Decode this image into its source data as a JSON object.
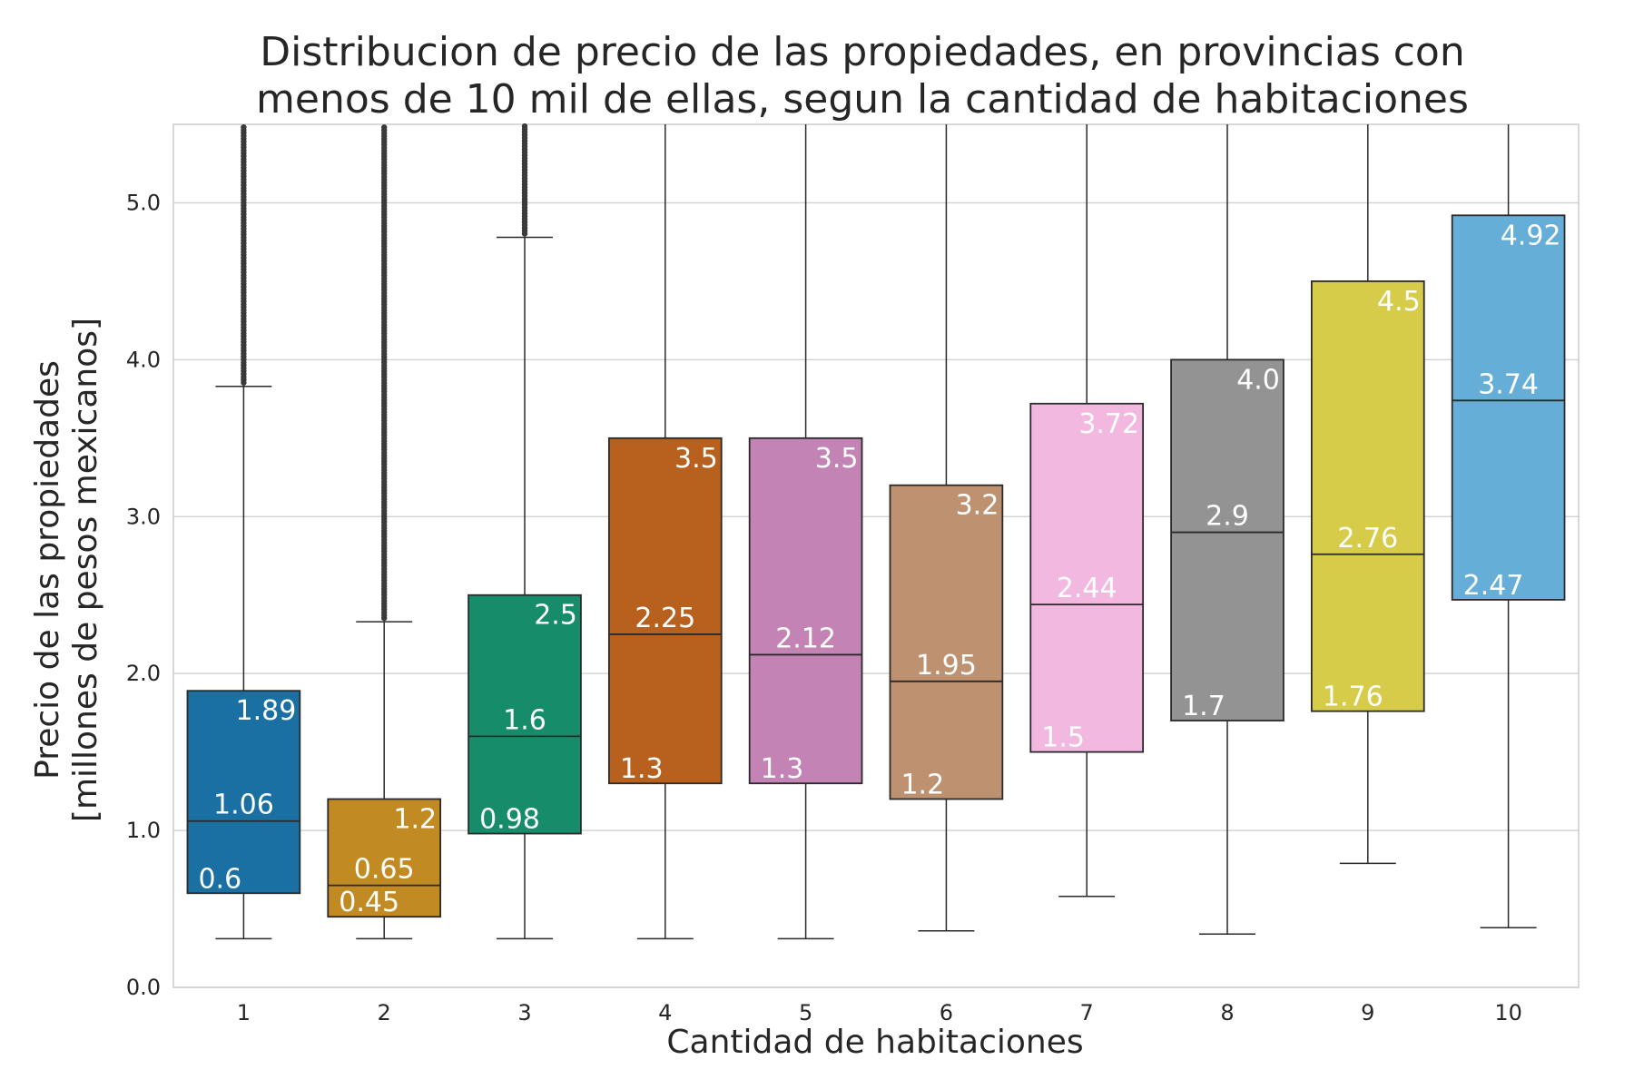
{
  "chart_data": {
    "type": "boxplot",
    "title_lines": [
      "Distribucion de precio de las propiedades, en provincias con",
      "menos de 10 mil de ellas, segun la cantidad de habitaciones"
    ],
    "xlabel": "Cantidad de habitaciones",
    "ylabel_lines": [
      "Precio de las propiedades",
      "[millones de pesos mexicanos]"
    ],
    "ylim": [
      0,
      5.5
    ],
    "yticks": [
      0,
      1,
      2,
      3,
      4,
      5
    ],
    "ytick_labels": [
      "0.0",
      "1.0",
      "2.0",
      "3.0",
      "4.0",
      "5.0"
    ],
    "grid": true,
    "categories": [
      "1",
      "2",
      "3",
      "4",
      "5",
      "6",
      "7",
      "8",
      "9",
      "10"
    ],
    "boxes": [
      {
        "category": "1",
        "whislo": 0.31,
        "q1": 0.6,
        "median": 1.06,
        "q3": 1.89,
        "whishi": 3.83,
        "color": "#1a6fa3",
        "labels": {
          "q1": "0.6",
          "median": "1.06",
          "q3": "1.89"
        },
        "outliers_from": 3.83
      },
      {
        "category": "2",
        "whislo": 0.31,
        "q1": 0.45,
        "median": 0.65,
        "q3": 1.2,
        "whishi": 2.33,
        "color": "#c28a22",
        "labels": {
          "q1": "0.45",
          "median": "0.65",
          "q3": "1.2"
        },
        "outliers_from": 2.33
      },
      {
        "category": "3",
        "whislo": 0.31,
        "q1": 0.98,
        "median": 1.6,
        "q3": 2.5,
        "whishi": 4.78,
        "color": "#168c6a",
        "labels": {
          "q1": "0.98",
          "median": "1.6",
          "q3": "2.5"
        },
        "outliers_from": 4.78
      },
      {
        "category": "4",
        "whislo": 0.31,
        "q1": 1.3,
        "median": 2.25,
        "q3": 3.5,
        "whishi": 5.5,
        "color": "#b8611e",
        "labels": {
          "q1": "1.3",
          "median": "2.25",
          "q3": "3.5"
        }
      },
      {
        "category": "5",
        "whislo": 0.31,
        "q1": 1.3,
        "median": 2.12,
        "q3": 3.5,
        "whishi": 5.5,
        "color": "#c383b5",
        "labels": {
          "q1": "1.3",
          "median": "2.12",
          "q3": "3.5"
        }
      },
      {
        "category": "6",
        "whislo": 0.36,
        "q1": 1.2,
        "median": 1.95,
        "q3": 3.2,
        "whishi": 5.5,
        "color": "#be9271",
        "labels": {
          "q1": "1.2",
          "median": "1.95",
          "q3": "3.2"
        }
      },
      {
        "category": "7",
        "whislo": 0.58,
        "q1": 1.5,
        "median": 2.44,
        "q3": 3.72,
        "whishi": 5.5,
        "color": "#f2b8df",
        "labels": {
          "q1": "1.5",
          "median": "2.44",
          "q3": "3.72"
        }
      },
      {
        "category": "8",
        "whislo": 0.34,
        "q1": 1.7,
        "median": 2.9,
        "q3": 4.0,
        "whishi": 5.5,
        "color": "#939393",
        "labels": {
          "q1": "1.7",
          "median": "2.9",
          "q3": "4.0"
        }
      },
      {
        "category": "9",
        "whislo": 0.79,
        "q1": 1.76,
        "median": 2.76,
        "q3": 4.5,
        "whishi": 5.5,
        "color": "#d6cc4a",
        "labels": {
          "q1": "1.76",
          "median": "2.76",
          "q3": "4.5"
        }
      },
      {
        "category": "10",
        "whislo": 0.38,
        "q1": 2.47,
        "median": 3.74,
        "q3": 4.92,
        "whishi": 5.5,
        "color": "#65aed8",
        "labels": {
          "q1": "2.47",
          "median": "3.74",
          "q3": "4.92"
        }
      }
    ]
  }
}
